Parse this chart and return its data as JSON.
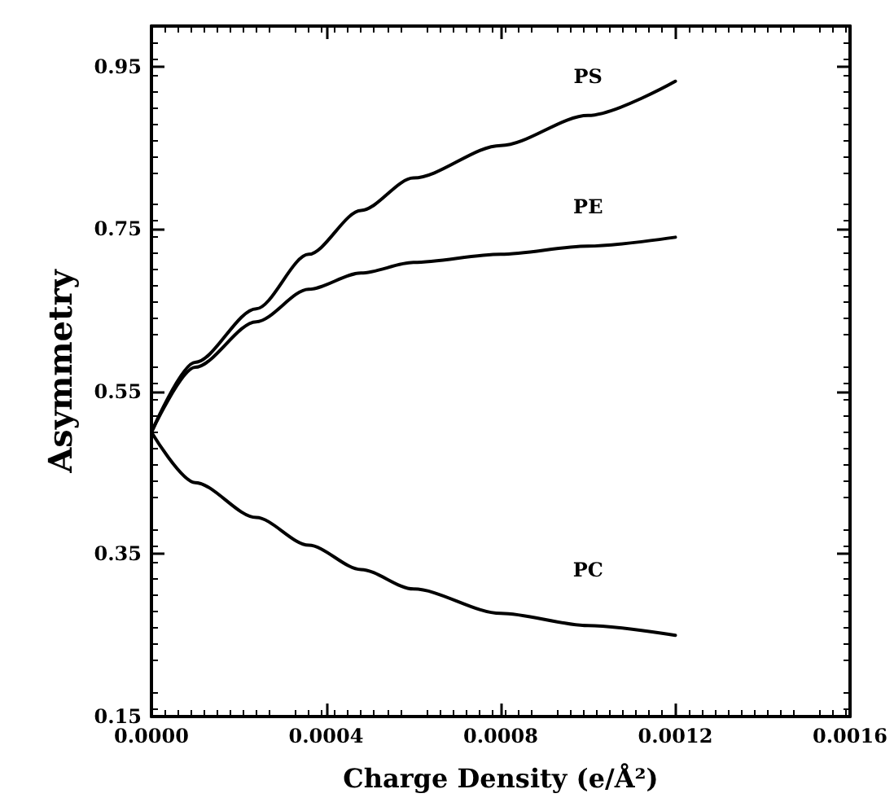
{
  "chart_data": {
    "type": "line",
    "xlabel": "Charge Density (e/Å²)",
    "ylabel": "Asymmetry",
    "xlim": [
      0,
      0.0016
    ],
    "ylim": [
      0.15,
      1.0
    ],
    "xticks": [
      {
        "value": 0,
        "label": "0.0000"
      },
      {
        "value": 0.0004,
        "label": "0.0004"
      },
      {
        "value": 0.0008,
        "label": "0.0008"
      },
      {
        "value": 0.0012,
        "label": "0.0012"
      },
      {
        "value": 0.0016,
        "label": "0.0016"
      }
    ],
    "yticks": [
      0.15,
      0.35,
      0.55,
      0.75,
      0.95
    ],
    "x": [
      0,
      0.0001,
      0.00024,
      0.00036,
      0.00048,
      0.0006,
      0.0008,
      0.001,
      0.0012
    ],
    "series": [
      {
        "name": "PS",
        "color": "#000000",
        "values": [
          0.5,
          0.586,
          0.652,
          0.719,
          0.773,
          0.813,
          0.853,
          0.89,
          0.932
        ]
      },
      {
        "name": "PE",
        "color": "#000000",
        "values": [
          0.5,
          0.58,
          0.636,
          0.676,
          0.696,
          0.709,
          0.719,
          0.729,
          0.74
        ]
      },
      {
        "name": "PC",
        "color": "#000000",
        "values": [
          0.5,
          0.438,
          0.395,
          0.361,
          0.331,
          0.307,
          0.277,
          0.262,
          0.25
        ]
      }
    ],
    "grid": false,
    "legend": false,
    "marker": "none",
    "line_style": "solid"
  }
}
